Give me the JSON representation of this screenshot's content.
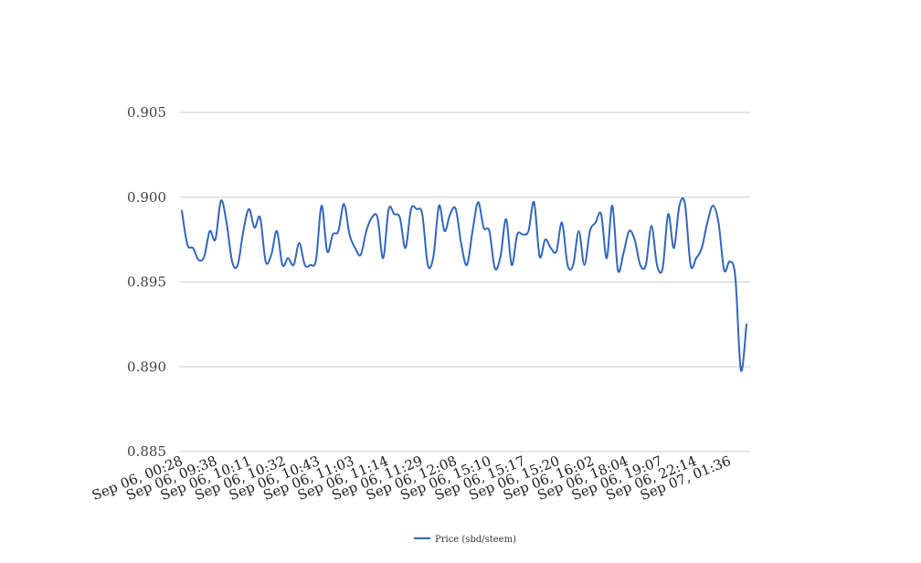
{
  "chart_data": {
    "type": "line",
    "title": "",
    "xlabel": "",
    "ylabel": "",
    "ylim": [
      0.885,
      0.905
    ],
    "yticks": [
      "0.885",
      "0.890",
      "0.895",
      "0.900",
      "0.905"
    ],
    "xticks": [
      "Sep 06, 00:28",
      "Sep 06, 09:38",
      "Sep 06, 10:11",
      "Sep 06, 10:32",
      "Sep 06, 10:43",
      "Sep 06, 11:03",
      "Sep 06, 11:14",
      "Sep 06, 11:29",
      "Sep 06, 12:08",
      "Sep 06, 15:10",
      "Sep 06, 15:17",
      "Sep 06, 15:20",
      "Sep 06, 16:02",
      "Sep 06, 18:04",
      "Sep 06, 19:07",
      "Sep 06, 22:14",
      "Sep 07, 01:36"
    ],
    "grid": true,
    "legend_position": "bottom",
    "series": [
      {
        "name": "Price (sbd/steem)",
        "color": "#3366bb",
        "values": [
          0.8992,
          0.8972,
          0.897,
          0.8963,
          0.8965,
          0.898,
          0.8975,
          0.8998,
          0.8985,
          0.8962,
          0.896,
          0.898,
          0.8993,
          0.8982,
          0.8988,
          0.8962,
          0.8966,
          0.898,
          0.896,
          0.8964,
          0.896,
          0.8973,
          0.896,
          0.896,
          0.8963,
          0.8995,
          0.8968,
          0.8978,
          0.898,
          0.8996,
          0.8978,
          0.897,
          0.8966,
          0.898,
          0.8988,
          0.8988,
          0.8964,
          0.8993,
          0.899,
          0.8988,
          0.897,
          0.8993,
          0.8993,
          0.899,
          0.896,
          0.8965,
          0.8995,
          0.898,
          0.899,
          0.8993,
          0.8972,
          0.896,
          0.898,
          0.8997,
          0.8982,
          0.898,
          0.8958,
          0.8965,
          0.8987,
          0.896,
          0.8978,
          0.8978,
          0.898,
          0.8997,
          0.8965,
          0.8975,
          0.897,
          0.8968,
          0.8985,
          0.896,
          0.896,
          0.898,
          0.896,
          0.898,
          0.8985,
          0.899,
          0.8964,
          0.8995,
          0.8957,
          0.8967,
          0.898,
          0.8975,
          0.896,
          0.896,
          0.8983,
          0.896,
          0.8958,
          0.899,
          0.897,
          0.8995,
          0.8996,
          0.896,
          0.8964,
          0.897,
          0.8985,
          0.8995,
          0.8985,
          0.8957,
          0.8962,
          0.8953,
          0.8898,
          0.8925
        ]
      }
    ]
  }
}
